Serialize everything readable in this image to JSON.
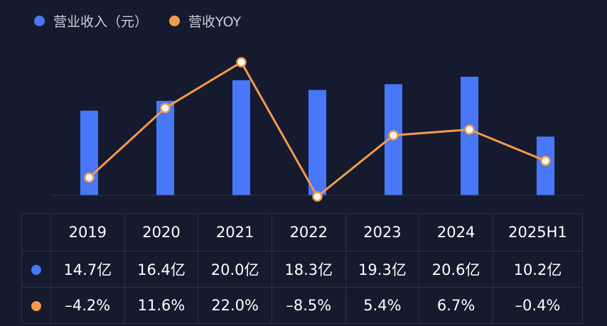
{
  "legend": {
    "revenue": "营业收入（元）",
    "yoy": "营收YOY"
  },
  "colors": {
    "bar": "#4877f7",
    "line": "#f39a4c",
    "background": "#151a2e",
    "grid": "#2a3150"
  },
  "chart_data": {
    "type": "bar",
    "categories": [
      "2019",
      "2020",
      "2021",
      "2022",
      "2023",
      "2024",
      "2025H1"
    ],
    "series": [
      {
        "name": "营业收入（元）",
        "type": "bar",
        "unit": "亿",
        "values": [
          14.7,
          16.4,
          20.0,
          18.3,
          19.3,
          20.6,
          10.2
        ]
      },
      {
        "name": "营收YOY",
        "type": "line",
        "unit": "%",
        "values": [
          -4.2,
          11.6,
          22.0,
          -8.5,
          5.4,
          6.7,
          -0.4
        ]
      }
    ],
    "title": "",
    "xlabel": "",
    "ylabel": ""
  },
  "table": {
    "years": [
      "2019",
      "2020",
      "2021",
      "2022",
      "2023",
      "2024",
      "2025H1"
    ],
    "revenue": [
      "14.7亿",
      "16.4亿",
      "20.0亿",
      "18.3亿",
      "19.3亿",
      "20.6亿",
      "10.2亿"
    ],
    "yoy": [
      "–4.2%",
      "11.6%",
      "22.0%",
      "–8.5%",
      "5.4%",
      "6.7%",
      "–0.4%"
    ]
  }
}
